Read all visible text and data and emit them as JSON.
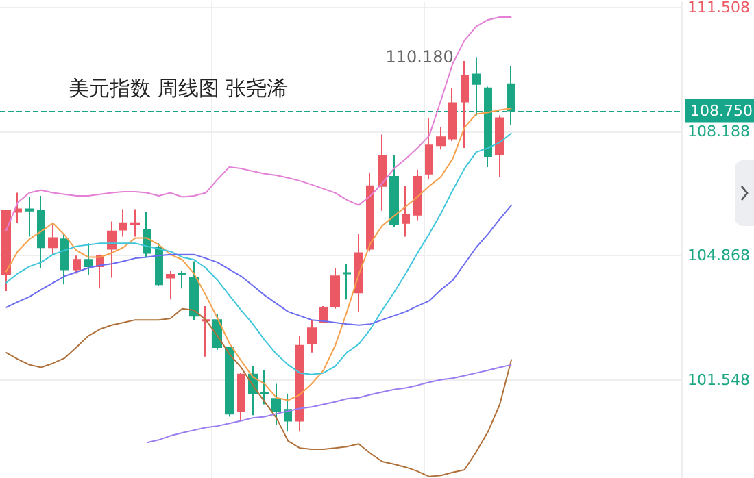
{
  "chart_data": {
    "type": "candlestick",
    "title": "美元指数 周线图 张尧浠",
    "categories": [
      null,
      null,
      null,
      null,
      null,
      null,
      null,
      null,
      null,
      null,
      null,
      null,
      null,
      null,
      null,
      null,
      null,
      null,
      null,
      null,
      null,
      null,
      null,
      null,
      null,
      null,
      null,
      null,
      null,
      null,
      null,
      null,
      null,
      null,
      null,
      null,
      null,
      null,
      null,
      null,
      null,
      null,
      null,
      null
    ],
    "ohlc": [
      [
        104.36,
        106.07,
        103.92,
        106.07
      ],
      [
        106.04,
        106.55,
        105.74,
        106.11
      ],
      [
        106.11,
        106.44,
        105.38,
        106.07
      ],
      [
        106.07,
        106.47,
        104.54,
        105.09
      ],
      [
        105.09,
        105.71,
        104.9,
        105.34
      ],
      [
        105.31,
        105.45,
        104.1,
        104.5
      ],
      [
        104.5,
        104.87,
        104.39,
        104.76
      ],
      [
        104.76,
        105.2,
        104.36,
        104.58
      ],
      [
        104.58,
        104.9,
        103.99,
        104.87
      ],
      [
        105.05,
        105.78,
        104.28,
        105.52
      ],
      [
        105.56,
        106.11,
        105.38,
        105.74
      ],
      [
        105.72,
        106.11,
        105.38,
        105.74
      ],
      [
        105.56,
        106.04,
        104.83,
        104.94
      ],
      [
        105.09,
        105.2,
        104.07,
        104.1
      ],
      [
        104.28,
        104.47,
        103.7,
        104.36
      ],
      [
        104.38,
        104.47,
        103.99,
        104.36
      ],
      [
        104.28,
        104.72,
        103.15,
        103.26
      ],
      [
        103.13,
        103.52,
        102.17,
        103.15
      ],
      [
        103.15,
        103.3,
        102.35,
        102.42
      ],
      [
        102.42,
        102.42,
        100.56,
        100.64
      ],
      [
        100.71,
        101.73,
        100.45,
        101.69
      ],
      [
        101.69,
        101.91,
        100.6,
        101.18
      ],
      [
        101.2,
        101.8,
        100.89,
        101.18
      ],
      [
        101.04,
        101.44,
        100.34,
        100.71
      ],
      [
        100.75,
        101.18,
        100.16,
        100.45
      ],
      [
        100.45,
        102.72,
        100.16,
        102.46
      ],
      [
        102.53,
        103.15,
        102.28,
        102.93
      ],
      [
        103.08,
        103.52,
        103.08,
        103.48
      ],
      [
        103.52,
        104.54,
        103.45,
        104.32
      ],
      [
        104.41,
        104.65,
        103.7,
        104.39
      ],
      [
        103.88,
        105.45,
        103.37,
        104.94
      ],
      [
        105.05,
        107.09,
        104.98,
        106.73
      ],
      [
        106.73,
        108.11,
        106.07,
        107.53
      ],
      [
        106.98,
        107.57,
        105.63,
        105.71
      ],
      [
        105.74,
        106.73,
        105.38,
        105.96
      ],
      [
        105.96,
        107.17,
        105.82,
        106.98
      ],
      [
        107.06,
        108.55,
        106.91,
        107.82
      ],
      [
        107.82,
        108.3,
        107.71,
        108.04
      ],
      [
        108.0,
        109.35,
        107.93,
        108.95
      ],
      [
        108.99,
        110.08,
        107.75,
        109.68
      ],
      [
        109.72,
        110.18,
        108.62,
        109.46
      ],
      [
        109.35,
        109.39,
        107.24,
        107.53
      ],
      [
        107.57,
        108.62,
        106.98,
        108.55
      ],
      [
        109.46,
        109.94,
        108.37,
        108.75
      ]
    ],
    "colors": [
      "#eb5a64",
      "#eb5a64",
      "#1ba784",
      "#1ba784",
      "#eb5a64",
      "#1ba784",
      "#eb5a64",
      "#1ba784",
      "#eb5a64",
      "#eb5a64",
      "#eb5a64",
      "#eb5a64",
      "#1ba784",
      "#1ba784",
      "#eb5a64",
      "#1ba784",
      "#1ba784",
      "#eb5a64",
      "#1ba784",
      "#1ba784",
      "#eb5a64",
      "#1ba784",
      "#1ba784",
      "#1ba784",
      "#1ba784",
      "#eb5a64",
      "#eb5a64",
      "#eb5a64",
      "#eb5a64",
      "#1ba784",
      "#eb5a64",
      "#eb5a64",
      "#eb5a64",
      "#1ba784",
      "#eb5a64",
      "#eb5a64",
      "#eb5a64",
      "#eb5a64",
      "#eb5a64",
      "#eb5a64",
      "#1ba784",
      "#1ba784",
      "#eb5a64",
      "#1ba784"
    ],
    "series": [
      {
        "type": "line",
        "color": "#f7a04b",
        "values": [
          104.43,
          104.98,
          105.31,
          105.52,
          105.74,
          105.42,
          105.01,
          104.83,
          104.83,
          104.94,
          105.09,
          105.34,
          105.34,
          105.16,
          104.9,
          104.76,
          104.39,
          103.81,
          103.19,
          102.53,
          102.06,
          101.62,
          101.44,
          101.07,
          101.0,
          101.15,
          101.44,
          101.8,
          102.46,
          103.37,
          104.36,
          105.2,
          105.67,
          105.93,
          106.18,
          106.44,
          106.73,
          106.98,
          107.46,
          108.3,
          108.66,
          108.7,
          108.77,
          108.81
        ]
      },
      {
        "type": "line",
        "color": "#3fc6dc",
        "values": [
          104.14,
          104.39,
          104.58,
          104.69,
          104.9,
          105.01,
          105.12,
          105.16,
          105.2,
          105.2,
          105.2,
          105.2,
          105.12,
          105.05,
          104.98,
          104.83,
          104.76,
          104.54,
          104.21,
          103.81,
          103.41,
          103.04,
          102.61,
          102.24,
          101.95,
          101.73,
          101.69,
          101.73,
          101.91,
          102.28,
          102.5,
          102.9,
          103.41,
          103.88,
          104.39,
          104.94,
          105.45,
          106.0,
          106.62,
          107.2,
          107.64,
          107.75,
          107.9,
          108.15
        ]
      },
      {
        "type": "line",
        "color": "#6b6cf0",
        "values": [
          103.48,
          103.63,
          103.77,
          103.96,
          104.14,
          104.32,
          104.43,
          104.54,
          104.61,
          104.65,
          104.72,
          104.8,
          104.83,
          104.87,
          104.9,
          104.9,
          104.9,
          104.8,
          104.69,
          104.5,
          104.32,
          104.07,
          103.81,
          103.59,
          103.37,
          103.26,
          103.15,
          103.12,
          103.08,
          103.04,
          103.01,
          103.04,
          103.15,
          103.26,
          103.37,
          103.52,
          103.66,
          103.96,
          104.21,
          104.65,
          105.09,
          105.45,
          105.85,
          106.22
        ]
      },
      {
        "type": "line",
        "color": "#e47fd6",
        "values": [
          105.52,
          106.29,
          106.55,
          106.62,
          106.55,
          106.51,
          106.47,
          106.47,
          106.51,
          106.55,
          106.58,
          106.58,
          106.55,
          106.47,
          106.55,
          106.44,
          106.47,
          106.55,
          106.91,
          107.24,
          107.2,
          107.13,
          107.06,
          107.02,
          106.95,
          106.87,
          106.77,
          106.66,
          106.55,
          106.36,
          106.22,
          106.47,
          106.8,
          107.2,
          107.46,
          107.75,
          108.08,
          109.03,
          110.01,
          110.63,
          111.0,
          111.18,
          111.25,
          111.25
        ]
      },
      {
        "type": "line",
        "color": "#b0703a",
        "values": [
          102.28,
          102.1,
          101.95,
          101.88,
          101.99,
          102.13,
          102.42,
          102.72,
          102.9,
          103.01,
          103.08,
          103.15,
          103.15,
          103.15,
          103.19,
          103.45,
          103.41,
          103.15,
          102.72,
          102.24,
          101.88,
          101.4,
          100.96,
          100.53,
          99.91,
          99.72,
          99.69,
          99.69,
          99.72,
          99.76,
          99.83,
          99.58,
          99.36,
          99.29,
          99.21,
          99.1,
          98.96,
          98.99,
          99.07,
          99.14,
          99.62,
          100.16,
          100.89,
          102.1
        ]
      },
      {
        "type": "line",
        "color": "#9b7cf0",
        "values": [
          null,
          null,
          null,
          null,
          null,
          null,
          null,
          null,
          null,
          null,
          null,
          null,
          99.87,
          99.94,
          100.05,
          100.13,
          100.2,
          100.27,
          100.31,
          100.38,
          100.45,
          100.53,
          100.56,
          100.64,
          100.71,
          100.78,
          100.82,
          100.89,
          100.96,
          101.04,
          101.07,
          101.15,
          101.22,
          101.29,
          101.33,
          101.4,
          101.48,
          101.55,
          101.59,
          101.66,
          101.73,
          101.8,
          101.88,
          101.95
        ]
      }
    ],
    "ylim": [
      98.92,
      111.65
    ],
    "yticks": [
      101.548,
      104.868,
      108.188,
      111.508
    ],
    "ref_lines": [
      {
        "axis": "y",
        "value": 108.75,
        "label": "108.750",
        "color": "#17a689",
        "line_style": "dashed"
      }
    ],
    "annotations": [
      "110.180"
    ],
    "grid": true,
    "marker": "none"
  }
}
